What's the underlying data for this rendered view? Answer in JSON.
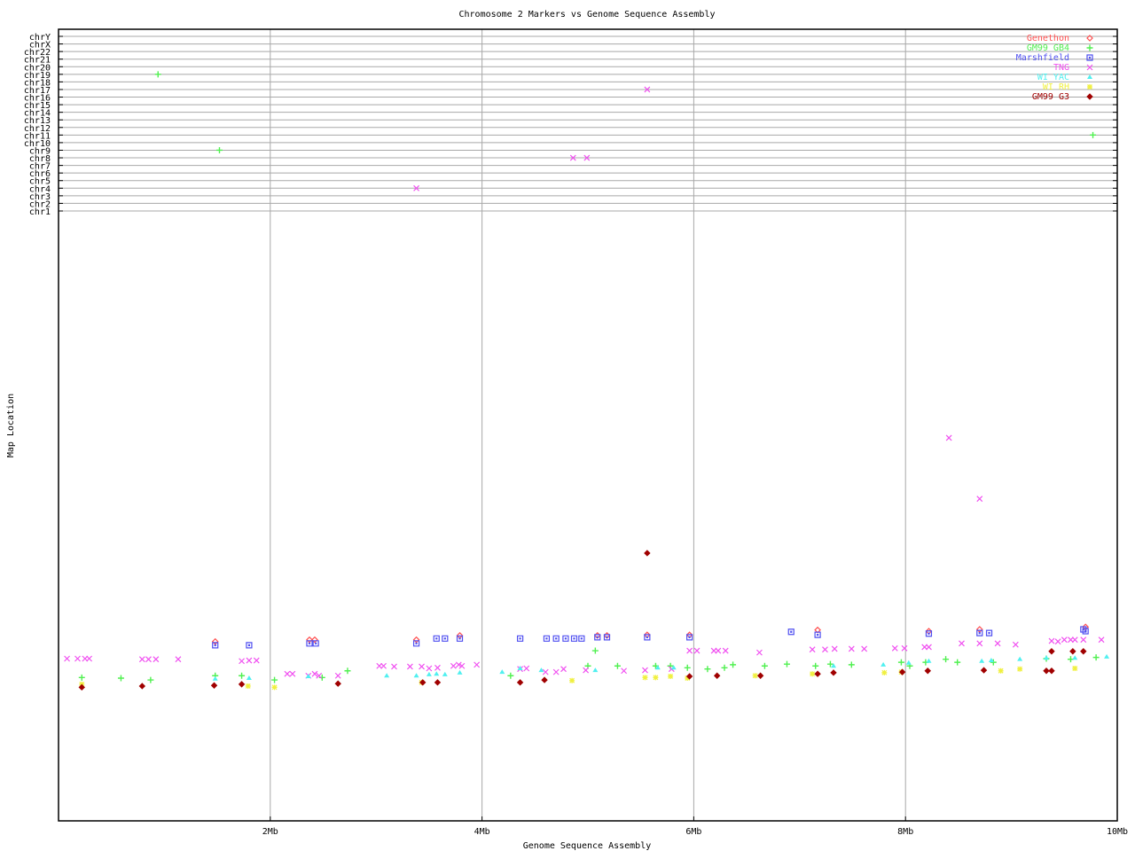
{
  "chart_data": {
    "type": "scatter",
    "title": "Chromosome 2 Markers vs Genome Sequence Assembly",
    "xlabel": "Genome Sequence Assembly",
    "ylabel": "Map Location",
    "xlim": [
      0,
      10
    ],
    "x_unit": "Mb",
    "x_ticks": [
      {
        "value": 2,
        "label": "2Mb"
      },
      {
        "value": 4,
        "label": "4Mb"
      },
      {
        "value": 6,
        "label": "6Mb"
      },
      {
        "value": 8,
        "label": "8Mb"
      },
      {
        "value": 10,
        "label": "10Mb"
      }
    ],
    "chromosome_rows": [
      "chrY",
      "chrX",
      "chr22",
      "chr21",
      "chr20",
      "chr19",
      "chr18",
      "chr17",
      "chr16",
      "chr15",
      "chr14",
      "chr13",
      "chr12",
      "chr11",
      "chr10",
      "chr9",
      "chr8",
      "chr7",
      "chr6",
      "chr5",
      "chr4",
      "chr3",
      "chr2",
      "chr1"
    ],
    "grid": true,
    "legend_position": "top-right",
    "series": [
      {
        "name": "Genethon",
        "marker": "diamond",
        "color": "#ff5050",
        "points": [
          [
            1.48,
            29.4
          ],
          [
            2.37,
            29.7
          ],
          [
            2.42,
            29.7
          ],
          [
            3.38,
            29.7
          ],
          [
            3.79,
            30.4
          ],
          [
            5.09,
            30.4
          ],
          [
            5.18,
            30.4
          ],
          [
            5.56,
            30.5
          ],
          [
            5.96,
            30.5
          ],
          [
            7.17,
            31.3
          ],
          [
            8.22,
            31.1
          ],
          [
            8.7,
            31.4
          ],
          [
            9.7,
            31.8
          ]
        ]
      },
      {
        "name": "GM99 GB4",
        "marker": "plus",
        "color": "#50f050",
        "points": [
          [
            0.22,
            23.5
          ],
          [
            0.59,
            23.4
          ],
          [
            0.87,
            23.1
          ],
          [
            1.48,
            23.8
          ],
          [
            1.73,
            23.8
          ],
          [
            2.04,
            23.1
          ],
          [
            2.49,
            23.5
          ],
          [
            2.73,
            24.6
          ],
          [
            4.27,
            23.8
          ],
          [
            5.0,
            25.4
          ],
          [
            5.07,
            27.9
          ],
          [
            5.28,
            25.4
          ],
          [
            5.64,
            25.4
          ],
          [
            5.78,
            25.4
          ],
          [
            5.94,
            25.1
          ],
          [
            6.13,
            24.9
          ],
          [
            6.29,
            25.1
          ],
          [
            6.37,
            25.6
          ],
          [
            6.67,
            25.4
          ],
          [
            6.88,
            25.7
          ],
          [
            7.15,
            25.4
          ],
          [
            7.29,
            25.7
          ],
          [
            7.49,
            25.6
          ],
          [
            7.96,
            26.0
          ],
          [
            8.04,
            25.4
          ],
          [
            8.19,
            26.0
          ],
          [
            8.38,
            26.5
          ],
          [
            8.49,
            26.0
          ],
          [
            8.83,
            26.0
          ],
          [
            9.33,
            26.6
          ],
          [
            9.56,
            26.5
          ],
          [
            9.8,
            26.8
          ]
        ],
        "chromosome_points": [
          [
            0.94,
            "chr19"
          ],
          [
            1.52,
            "chr9"
          ],
          [
            9.77,
            "chr11"
          ]
        ]
      },
      {
        "name": "Marshfield",
        "marker": "square",
        "color": "#5050f0",
        "points": [
          [
            1.48,
            28.8
          ],
          [
            1.8,
            28.8
          ],
          [
            2.37,
            29.1
          ],
          [
            2.43,
            29.1
          ],
          [
            3.38,
            29.1
          ],
          [
            3.57,
            29.9
          ],
          [
            3.65,
            29.9
          ],
          [
            3.79,
            29.9
          ],
          [
            4.36,
            29.9
          ],
          [
            4.61,
            29.9
          ],
          [
            4.7,
            29.9
          ],
          [
            4.79,
            29.9
          ],
          [
            4.87,
            29.9
          ],
          [
            4.94,
            29.9
          ],
          [
            5.09,
            30.1
          ],
          [
            5.18,
            30.1
          ],
          [
            5.56,
            30.1
          ],
          [
            5.96,
            30.1
          ],
          [
            6.92,
            31.0
          ],
          [
            7.17,
            30.5
          ],
          [
            8.22,
            30.7
          ],
          [
            8.7,
            30.8
          ],
          [
            8.79,
            30.8
          ],
          [
            9.68,
            31.4
          ],
          [
            9.7,
            31.1
          ]
        ]
      },
      {
        "name": "TNG",
        "marker": "x",
        "color": "#f050f0",
        "points": [
          [
            0.08,
            26.6
          ],
          [
            0.18,
            26.6
          ],
          [
            0.25,
            26.6
          ],
          [
            0.29,
            26.6
          ],
          [
            0.79,
            26.5
          ],
          [
            0.85,
            26.5
          ],
          [
            0.92,
            26.5
          ],
          [
            1.13,
            26.5
          ],
          [
            1.73,
            26.2
          ],
          [
            1.8,
            26.3
          ],
          [
            1.87,
            26.3
          ],
          [
            2.16,
            24.1
          ],
          [
            2.21,
            24.1
          ],
          [
            2.36,
            23.8
          ],
          [
            2.42,
            24.1
          ],
          [
            2.46,
            23.8
          ],
          [
            2.64,
            23.8
          ],
          [
            3.03,
            25.4
          ],
          [
            3.07,
            25.4
          ],
          [
            3.17,
            25.3
          ],
          [
            3.32,
            25.3
          ],
          [
            3.43,
            25.3
          ],
          [
            3.5,
            25.0
          ],
          [
            3.58,
            25.1
          ],
          [
            3.73,
            25.4
          ],
          [
            3.78,
            25.6
          ],
          [
            3.81,
            25.4
          ],
          [
            3.95,
            25.6
          ],
          [
            4.36,
            24.9
          ],
          [
            4.42,
            25.0
          ],
          [
            4.6,
            24.4
          ],
          [
            4.7,
            24.4
          ],
          [
            4.77,
            24.9
          ],
          [
            4.98,
            24.7
          ],
          [
            5.34,
            24.6
          ],
          [
            5.54,
            24.7
          ],
          [
            5.79,
            24.9
          ],
          [
            5.96,
            27.9
          ],
          [
            6.03,
            27.9
          ],
          [
            6.19,
            27.9
          ],
          [
            6.23,
            27.9
          ],
          [
            6.3,
            27.9
          ],
          [
            6.62,
            27.6
          ],
          [
            7.12,
            28.1
          ],
          [
            7.24,
            28.1
          ],
          [
            7.33,
            28.2
          ],
          [
            7.49,
            28.2
          ],
          [
            7.61,
            28.2
          ],
          [
            7.9,
            28.3
          ],
          [
            7.99,
            28.3
          ],
          [
            8.18,
            28.5
          ],
          [
            8.22,
            28.5
          ],
          [
            8.41,
            62.8
          ],
          [
            8.53,
            29.1
          ],
          [
            8.7,
            52.8
          ],
          [
            8.7,
            29.1
          ],
          [
            8.87,
            29.1
          ],
          [
            9.04,
            28.9
          ],
          [
            9.38,
            29.5
          ],
          [
            9.44,
            29.4
          ],
          [
            9.5,
            29.7
          ],
          [
            9.56,
            29.7
          ],
          [
            9.6,
            29.7
          ],
          [
            9.68,
            29.7
          ],
          [
            9.85,
            29.7
          ]
        ],
        "chromosome_points": [
          [
            5.56,
            "chr17"
          ],
          [
            4.86,
            "chr8"
          ],
          [
            4.99,
            "chr8"
          ],
          [
            3.38,
            "chr4"
          ]
        ]
      },
      {
        "name": "WI YAC",
        "marker": "triangle",
        "color": "#50f0f0",
        "points": [
          [
            1.48,
            23.3
          ],
          [
            1.8,
            23.4
          ],
          [
            2.36,
            23.7
          ],
          [
            3.1,
            23.8
          ],
          [
            3.38,
            23.8
          ],
          [
            3.5,
            24.0
          ],
          [
            3.57,
            24.1
          ],
          [
            3.65,
            24.0
          ],
          [
            3.79,
            24.3
          ],
          [
            4.19,
            24.4
          ],
          [
            4.36,
            25.0
          ],
          [
            4.56,
            24.7
          ],
          [
            5.07,
            24.7
          ],
          [
            5.66,
            25.1
          ],
          [
            5.81,
            25.1
          ],
          [
            7.32,
            25.4
          ],
          [
            7.79,
            25.6
          ],
          [
            8.03,
            25.9
          ],
          [
            8.22,
            26.2
          ],
          [
            8.72,
            26.2
          ],
          [
            8.81,
            26.3
          ],
          [
            9.08,
            26.5
          ],
          [
            9.33,
            26.7
          ],
          [
            9.6,
            26.7
          ],
          [
            9.9,
            26.9
          ]
        ]
      },
      {
        "name": "WI RH",
        "marker": "star",
        "color": "#f0f040",
        "points": [
          [
            0.22,
            22.4
          ],
          [
            1.79,
            22.1
          ],
          [
            2.04,
            21.9
          ],
          [
            3.43,
            22.7
          ],
          [
            4.85,
            23.0
          ],
          [
            5.54,
            23.5
          ],
          [
            5.64,
            23.5
          ],
          [
            5.78,
            23.7
          ],
          [
            5.94,
            23.4
          ],
          [
            6.58,
            23.8
          ],
          [
            7.12,
            24.1
          ],
          [
            7.8,
            24.3
          ],
          [
            7.96,
            24.4
          ],
          [
            8.9,
            24.6
          ],
          [
            9.08,
            24.9
          ],
          [
            9.6,
            25.0
          ]
        ]
      },
      {
        "name": "GM99 G3",
        "marker": "filled-diamond",
        "color": "#a00000",
        "points": [
          [
            0.22,
            21.9
          ],
          [
            0.79,
            22.1
          ],
          [
            1.47,
            22.2
          ],
          [
            1.73,
            22.4
          ],
          [
            2.64,
            22.5
          ],
          [
            3.44,
            22.7
          ],
          [
            3.58,
            22.7
          ],
          [
            4.36,
            22.7
          ],
          [
            4.59,
            23.1
          ],
          [
            5.56,
            43.9
          ],
          [
            5.96,
            23.7
          ],
          [
            6.22,
            23.8
          ],
          [
            6.63,
            23.8
          ],
          [
            7.17,
            24.1
          ],
          [
            7.32,
            24.3
          ],
          [
            7.97,
            24.4
          ],
          [
            8.21,
            24.6
          ],
          [
            8.74,
            24.7
          ],
          [
            9.33,
            24.6
          ],
          [
            9.38,
            27.8
          ],
          [
            9.38,
            24.6
          ],
          [
            9.58,
            27.8
          ],
          [
            9.68,
            27.8
          ]
        ]
      }
    ]
  }
}
